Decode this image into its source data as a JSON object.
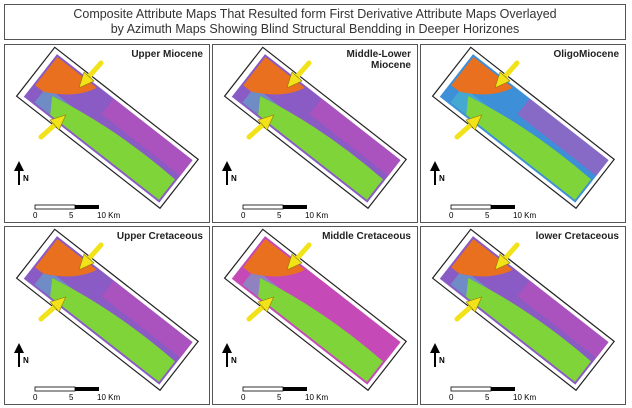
{
  "title": {
    "line1": "Composite Attribute Maps That Resulted form First Derivative Attribute Maps Overlayed",
    "line2": "by Azimuth Maps Showing Blind Structural Bendding in Deeper Horizones"
  },
  "panels": [
    {
      "label": "Upper Miocene",
      "label_line2": ""
    },
    {
      "label": "Middle-Lower",
      "label_line2": "Miocene"
    },
    {
      "label": "OligoMiocene",
      "label_line2": ""
    },
    {
      "label": "Upper Cretaceous",
      "label_line2": ""
    },
    {
      "label": "Middle Cretaceous",
      "label_line2": ""
    },
    {
      "label": "lower Cretaceous",
      "label_line2": ""
    }
  ],
  "scale_bar": {
    "tick0": "0",
    "tick1": "5",
    "tick2": "10 Km"
  },
  "north_label": "N",
  "colors": {
    "green": "#7fd43a",
    "orange": "#e8701e",
    "purple": "#8a5bc4",
    "magenta": "#c54ab8",
    "blue": "#3d8fd8",
    "cyan": "#4fc7c9",
    "arrow": "#f2e21a"
  }
}
